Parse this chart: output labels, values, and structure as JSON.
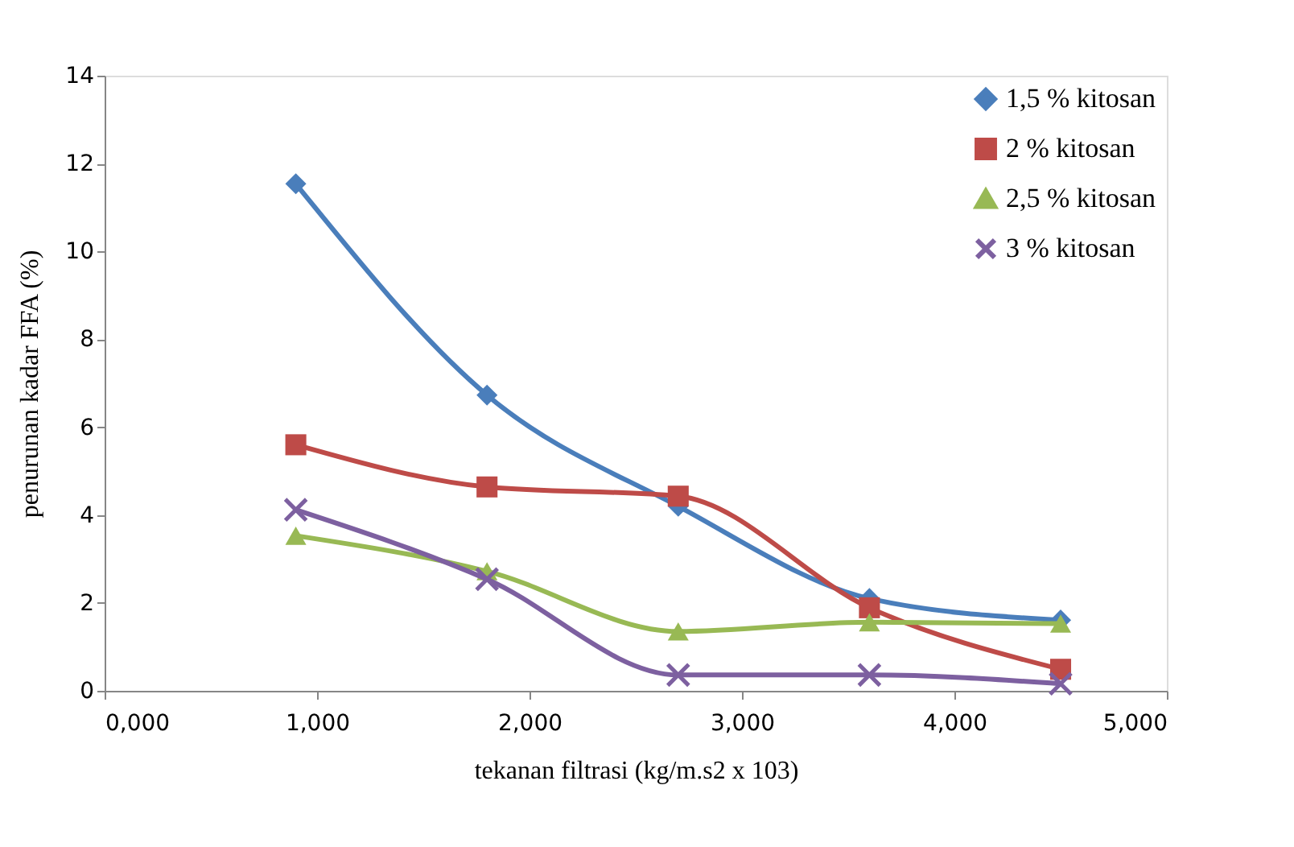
{
  "chart_data": {
    "type": "line",
    "xlabel": "tekanan filtrasi (kg/m.s2 x 103)",
    "ylabel": "penurunan kadar FFA (%)",
    "x": [
      0.9,
      1.8,
      2.7,
      3.6,
      4.5
    ],
    "series": [
      {
        "name": "1,5 % kitosan",
        "color": "#4a7ebb",
        "marker": "diamond",
        "values": [
          11.54,
          6.73,
          4.2,
          2.1,
          1.61
        ]
      },
      {
        "name": "2 % kitosan",
        "color": "#be4b48",
        "marker": "square",
        "values": [
          5.6,
          4.64,
          4.43,
          1.89,
          0.49
        ]
      },
      {
        "name": "2,5 % kitosan",
        "color": "#98b954",
        "marker": "triangle",
        "values": [
          3.53,
          2.72,
          1.35,
          1.56,
          1.53
        ]
      },
      {
        "name": "3 % kitosan",
        "color": "#7d60a0",
        "marker": "cross",
        "values": [
          4.12,
          2.54,
          0.36,
          0.36,
          0.16
        ]
      }
    ],
    "xlim": [
      0,
      5
    ],
    "ylim": [
      0,
      14
    ],
    "xticks": [
      {
        "value": 0,
        "label": "0,000"
      },
      {
        "value": 1,
        "label": "1,000"
      },
      {
        "value": 2,
        "label": "2,000"
      },
      {
        "value": 3,
        "label": "3,000"
      },
      {
        "value": 4,
        "label": "4,000"
      },
      {
        "value": 5,
        "label": "5,000"
      }
    ],
    "yticks": [
      0,
      2,
      4,
      6,
      8,
      10,
      12,
      14
    ],
    "grid": false,
    "legend": "top right",
    "line_style": "solid"
  }
}
